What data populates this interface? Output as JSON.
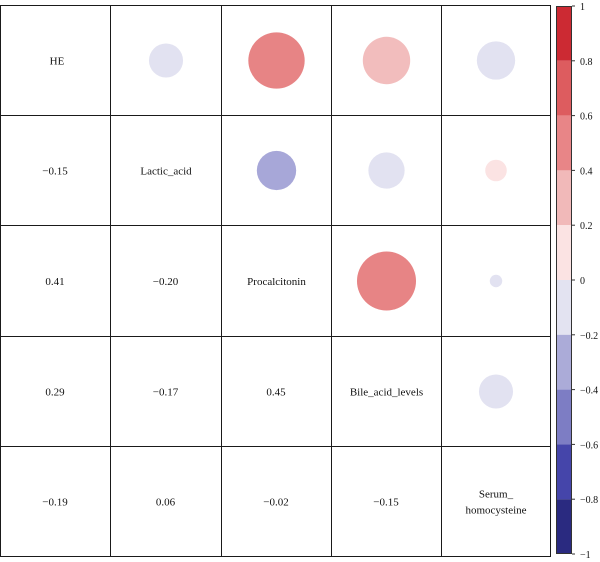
{
  "chart_data": {
    "type": "heatmap",
    "subtype": "correlogram (mixed: circles upper, numbers lower)",
    "variables": [
      "HE",
      "Lactic_acid",
      "Procalcitonin",
      "Bile_acid_levels",
      "Serum_ homocysteine"
    ],
    "variable_labels": [
      [
        "HE"
      ],
      [
        "Lactic_acid"
      ],
      [
        "Procalcitonin"
      ],
      [
        "Bile_acid_levels"
      ],
      [
        "Serum_",
        "homocysteine"
      ]
    ],
    "matrix": [
      [
        1,
        -0.15,
        0.41,
        0.29,
        -0.19
      ],
      [
        -0.15,
        1,
        -0.2,
        -0.17,
        0.06
      ],
      [
        0.41,
        -0.2,
        1,
        0.45,
        -0.02
      ],
      [
        0.29,
        -0.17,
        0.45,
        1,
        -0.15
      ],
      [
        -0.19,
        0.06,
        -0.02,
        -0.15,
        1
      ]
    ],
    "lower_labels": [
      {
        "row": 1,
        "col": 0,
        "text": "−0.15"
      },
      {
        "row": 2,
        "col": 0,
        "text": "0.41"
      },
      {
        "row": 2,
        "col": 1,
        "text": "−0.20"
      },
      {
        "row": 3,
        "col": 0,
        "text": "0.29"
      },
      {
        "row": 3,
        "col": 1,
        "text": "−0.17"
      },
      {
        "row": 3,
        "col": 2,
        "text": "0.45"
      },
      {
        "row": 4,
        "col": 0,
        "text": "−0.19"
      },
      {
        "row": 4,
        "col": 1,
        "text": "0.06"
      },
      {
        "row": 4,
        "col": 2,
        "text": "−0.02"
      },
      {
        "row": 4,
        "col": 3,
        "text": "−0.15"
      }
    ],
    "colorbar": {
      "range": [
        -1,
        1
      ],
      "ticks": [
        1,
        0.8,
        0.6,
        0.4,
        0.2,
        0,
        -0.2,
        -0.4,
        -0.6,
        -0.8,
        -1
      ],
      "tick_labels": [
        "1",
        "0.8",
        "0.6",
        "0.4",
        "0.2",
        "0",
        "−0.2",
        "−0.4",
        "−0.6",
        "−0.8",
        "−1"
      ],
      "bins": [
        {
          "from": 0.8,
          "to": 1.0,
          "color": "#cc2a33"
        },
        {
          "from": 0.6,
          "to": 0.8,
          "color": "#dd5c5f"
        },
        {
          "from": 0.4,
          "to": 0.6,
          "color": "#e88587"
        },
        {
          "from": 0.2,
          "to": 0.4,
          "color": "#f1b9b9"
        },
        {
          "from": 0.0,
          "to": 0.2,
          "color": "#fbe3e3"
        },
        {
          "from": -0.2,
          "to": 0.0,
          "color": "#e3e3f1"
        },
        {
          "from": -0.4,
          "to": -0.2,
          "color": "#ababd8"
        },
        {
          "from": -0.6,
          "to": -0.4,
          "color": "#7d7dc4"
        },
        {
          "from": -0.8,
          "to": -0.6,
          "color": "#4545aa"
        },
        {
          "from": -1.0,
          "to": -0.8,
          "color": "#2a2a80"
        }
      ]
    },
    "circle_colors": {
      "-0.20": "#a7a7d8",
      "-0.19": "#e2e2f1",
      "-0.17": "#e2e2f1",
      "-0.15": "#e2e2f1",
      "-0.02": "#e2e2f1",
      "0.06": "#fbe3e3",
      "0.29": "#f2bdbd",
      "0.41": "#e78485",
      "0.45": "#e78485"
    }
  }
}
